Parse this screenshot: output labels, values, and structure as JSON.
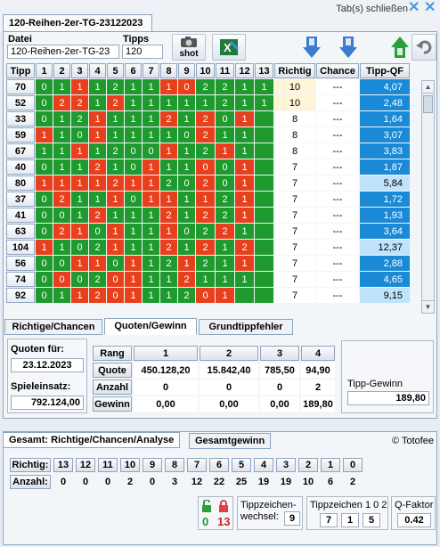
{
  "main_tab": "120-Reihen-2er-TG-23122023",
  "close_tabs_label": "Tab(s) schließen",
  "datei_label": "Datei",
  "datei_value": "120-Reihen-2er-TG-23",
  "tipps_label": "Tipps",
  "tipps_value": "120",
  "shot_label": "shot",
  "table_headers": {
    "tipp": "Tipp",
    "cols": [
      "1",
      "2",
      "3",
      "4",
      "5",
      "6",
      "7",
      "8",
      "9",
      "10",
      "11",
      "12",
      "13"
    ],
    "richtig": "Richtig",
    "chance": "Chance",
    "tippqf": "Tipp-QF"
  },
  "rows": [
    {
      "tipp": "70",
      "cells": [
        "0",
        "1",
        "1",
        "1",
        "2",
        "1",
        "1",
        "1",
        "0",
        "2",
        "2",
        "1",
        "1"
      ],
      "colors": "ggrggggrrgggg",
      "richtig": "10",
      "chance": "---",
      "qf": "4,07",
      "hl": true,
      "qflt": false
    },
    {
      "tipp": "52",
      "cells": [
        "0",
        "2",
        "2",
        "1",
        "2",
        "1",
        "1",
        "1",
        "1",
        "1",
        "2",
        "1",
        "1"
      ],
      "colors": "grrgrgggggggg",
      "richtig": "10",
      "chance": "---",
      "qf": "2,48",
      "hl": true,
      "qflt": false
    },
    {
      "tipp": "33",
      "cells": [
        "0",
        "1",
        "2",
        "1",
        "1",
        "1",
        "1",
        "2",
        "1",
        "2",
        "0",
        "1",
        " "
      ],
      "colors": "gggrgggrgrgrg",
      "richtig": "8",
      "chance": "---",
      "qf": "1,64",
      "hl": false,
      "qflt": false
    },
    {
      "tipp": "59",
      "cells": [
        "1",
        "1",
        "0",
        "1",
        "1",
        "1",
        "1",
        "1",
        "0",
        "2",
        "1",
        "1",
        " "
      ],
      "colors": "rggrgggggrggg",
      "richtig": "8",
      "chance": "---",
      "qf": "3,07",
      "hl": false,
      "qflt": false
    },
    {
      "tipp": "67",
      "cells": [
        "1",
        "1",
        "1",
        "1",
        "2",
        "0",
        "0",
        "1",
        "1",
        "2",
        "1",
        "1",
        " "
      ],
      "colors": "ggrggggrggrgg",
      "richtig": "8",
      "chance": "---",
      "qf": "3,83",
      "hl": false,
      "qflt": false
    },
    {
      "tipp": "40",
      "cells": [
        "0",
        "1",
        "1",
        "2",
        "1",
        "0",
        "1",
        "1",
        "1",
        "0",
        "0",
        "1",
        " "
      ],
      "colors": "gggrggrggrgrg",
      "richtig": "7",
      "chance": "---",
      "qf": "1,87",
      "hl": false,
      "qflt": false
    },
    {
      "tipp": "80",
      "cells": [
        "1",
        "1",
        "1",
        "1",
        "2",
        "1",
        "1",
        "2",
        "0",
        "2",
        "0",
        "1",
        " "
      ],
      "colors": "rrrrrrrggrgrg",
      "richtig": "7",
      "chance": "---",
      "qf": "5,84",
      "hl": false,
      "qflt": true
    },
    {
      "tipp": "37",
      "cells": [
        "0",
        "2",
        "1",
        "1",
        "1",
        "0",
        "1",
        "1",
        "1",
        "1",
        "2",
        "1",
        " "
      ],
      "colors": "grggrgrrgrgrg",
      "richtig": "7",
      "chance": "---",
      "qf": "1,72",
      "hl": false,
      "qflt": false
    },
    {
      "tipp": "41",
      "cells": [
        "0",
        "0",
        "1",
        "2",
        "1",
        "1",
        "1",
        "2",
        "1",
        "2",
        "2",
        "1",
        " "
      ],
      "colors": "gggrgggrgrgrg",
      "richtig": "7",
      "chance": "---",
      "qf": "1,93",
      "hl": false,
      "qflt": false
    },
    {
      "tipp": "63",
      "cells": [
        "0",
        "2",
        "1",
        "0",
        "1",
        "1",
        "1",
        "1",
        "0",
        "2",
        "2",
        "1",
        " "
      ],
      "colors": "grrgrggrggrgg",
      "richtig": "7",
      "chance": "---",
      "qf": "3,64",
      "hl": false,
      "qflt": false
    },
    {
      "tipp": "104",
      "cells": [
        "1",
        "1",
        "0",
        "2",
        "1",
        "1",
        "1",
        "2",
        "1",
        "2",
        "1",
        "2",
        " "
      ],
      "colors": "rgggrggrgrgrg",
      "richtig": "7",
      "chance": "---",
      "qf": "12,37",
      "hl": false,
      "qflt": true
    },
    {
      "tipp": "56",
      "cells": [
        "0",
        "0",
        "1",
        "1",
        "0",
        "1",
        "1",
        "2",
        "1",
        "2",
        "1",
        "1",
        " "
      ],
      "colors": "ggrrgrggrggrg",
      "richtig": "7",
      "chance": "---",
      "qf": "2,88",
      "hl": false,
      "qflt": false
    },
    {
      "tipp": "74",
      "cells": [
        "0",
        "0",
        "0",
        "2",
        "0",
        "1",
        "1",
        "1",
        "2",
        "1",
        "1",
        "1",
        " "
      ],
      "colors": "grggrrggrgggg",
      "richtig": "7",
      "chance": "---",
      "qf": "4,65",
      "hl": false,
      "qflt": false
    },
    {
      "tipp": "92",
      "cells": [
        "0",
        "1",
        "1",
        "2",
        "0",
        "1",
        "1",
        "1",
        "2",
        "0",
        "1",
        " ",
        " "
      ],
      "colors": "ggrrrrgggrrgg",
      "richtig": "7",
      "chance": "---",
      "qf": "9,15",
      "hl": false,
      "qflt": true
    }
  ],
  "subtabs": [
    "Richtige/Chancen",
    "Quoten/Gewinn",
    "Grundtippfehler"
  ],
  "quoten_fuer_label": "Quoten für:",
  "quoten_fuer_value": "23.12.2023",
  "spieleinsatz_label": "Spieleinsatz:",
  "spieleinsatz_value": "792.124,00",
  "rang_label": "Rang",
  "rang_cols": [
    "1",
    "2",
    "3",
    "4"
  ],
  "quote_label": "Quote",
  "quote_values": [
    "450.128,20",
    "15.842,40",
    "785,50",
    "94,90"
  ],
  "anzahl_label": "Anzahl",
  "anzahl_values": [
    "0",
    "0",
    "0",
    "2"
  ],
  "gewinn_label": "Gewinn",
  "gewinn_values": [
    "0,00",
    "0,00",
    "0,00",
    "189,80"
  ],
  "tipp_gewinn_label": "Tipp-Gewinn",
  "tipp_gewinn_value": "189,80",
  "bottom_tabs": [
    "Gesamt: Richtige/Chancen/Analyse",
    "Gesamtgewinn"
  ],
  "copyright": "© Totofee",
  "richtig_label": "Richtig:",
  "richtig_cols": [
    "13",
    "12",
    "11",
    "10",
    "9",
    "8",
    "7",
    "6",
    "5",
    "4",
    "3",
    "2",
    "1",
    "0"
  ],
  "anzahl2_label": "Anzahl:",
  "anzahl2_values": [
    "0",
    "0",
    "0",
    "2",
    "0",
    "3",
    "12",
    "22",
    "25",
    "19",
    "19",
    "10",
    "6",
    "2"
  ],
  "lock_green": "0",
  "lock_red": "13",
  "tz_label": "Tippzeichen-wechsel:",
  "tz_value": "9",
  "tz102_label": "Tippzeichen 1 0 2",
  "tz102_values": [
    "7",
    "1",
    "5"
  ],
  "qfaktor_label": "Q-Faktor",
  "qfaktor_value": "0.42",
  "colors": {
    "green": "#1e9a2e",
    "red": "#e8401c",
    "blue": "#1a8ad6"
  }
}
